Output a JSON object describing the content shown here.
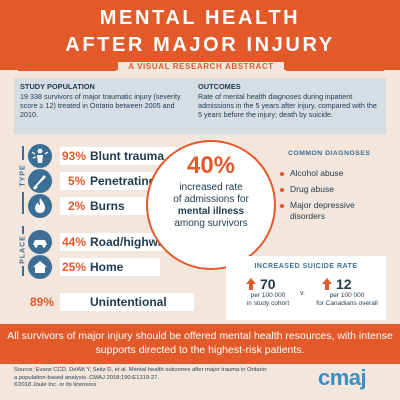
{
  "header": {
    "title_line1": "MENTAL HEALTH",
    "title_line2": "AFTER MAJOR INJURY"
  },
  "subtitle": "A VISUAL RESEARCH ABSTRACT",
  "study_population": {
    "heading": "STUDY POPULATION",
    "text": "19 338 survivors of major traumatic injury (severity score ≥ 12) treated in Ontario between 2005 and 2010."
  },
  "outcomes": {
    "heading": "OUTCOMES",
    "text": "Rate of mental health diagnoses during inpatient admissions in the 5 years after injury, compared with the 5 years before the injury; death by suicide."
  },
  "type_section": {
    "label": "TYPE",
    "items": [
      {
        "pct": "93%",
        "label": "Blunt trauma",
        "icon": "body-impact-icon"
      },
      {
        "pct": "5%",
        "label": "Penetrating",
        "icon": "knife-icon"
      },
      {
        "pct": "2%",
        "label": "Burns",
        "icon": "flame-icon"
      }
    ]
  },
  "place_section": {
    "label": "PLACE",
    "items": [
      {
        "pct": "44%",
        "label": "Road/highway",
        "icon": "road-icon"
      },
      {
        "pct": "25%",
        "label": "Home",
        "icon": "house-icon"
      }
    ]
  },
  "unintentional": {
    "pct": "89%",
    "label": "Unintentional"
  },
  "center_stat": {
    "value": "40%",
    "line1": "increased rate",
    "line2": "of admissions for",
    "line3": "mental illness",
    "line4": "among survivors"
  },
  "common_diagnoses": {
    "title": "COMMON DIAGNOSES",
    "items": [
      "Alcohol abuse",
      "Drug abuse",
      "Major depressive",
      "disorders"
    ]
  },
  "suicide": {
    "title": "INCREASED SUICIDE RATE",
    "study_value": "70",
    "study_sub1": "per 100 000",
    "study_sub2": "in study cohort",
    "vs": "v.",
    "canada_value": "12",
    "canada_sub1": "per 100 000",
    "canada_sub2": "for Canadians overall"
  },
  "bottom_message": "All survivors of major injury should be offered mental health resources, with intense supports directed to the highest-risk patients.",
  "source": {
    "line1": "Source: Evans CCD, DeWit Y, Seitz D, et al. Mental health outcomes after major trauma in Ontario:",
    "line2": "a population-based analysis. CMAJ 2018;190:E1319-27.",
    "line3": "©2018 Joule Inc. or its licensors"
  },
  "logo": "cmaj",
  "colors": {
    "accent": "#e2592a",
    "blue": "#3b6f96",
    "background": "#f3e6dc"
  }
}
